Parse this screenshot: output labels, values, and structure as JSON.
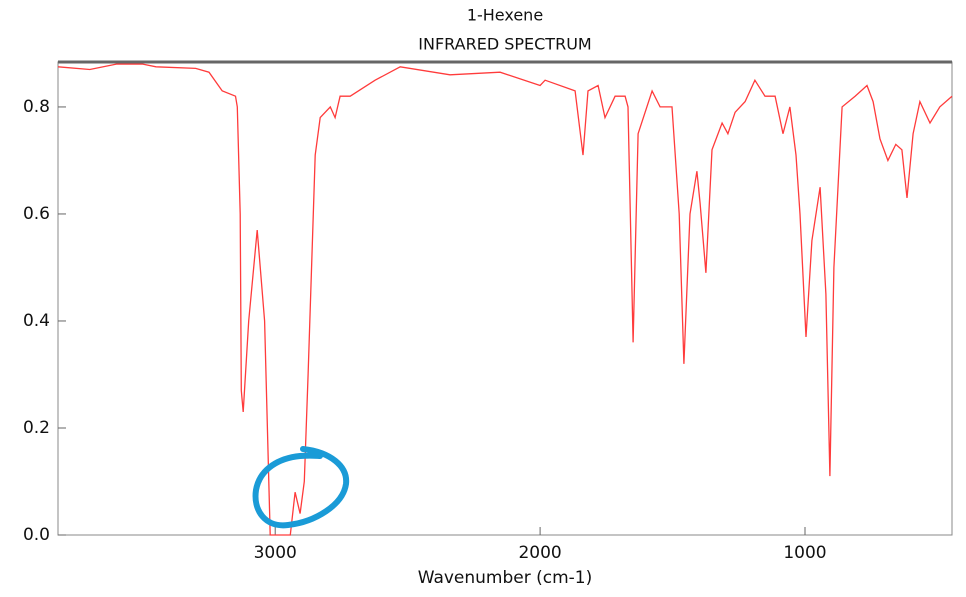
{
  "chart_data": {
    "type": "line",
    "title": "1-Hexene",
    "subtitle": "INFRARED SPECTRUM",
    "x_label": "Wavenumber (cm-1)",
    "color": "#ff3b3b",
    "x": [
      3820,
      3700,
      3600,
      3500,
      3450,
      3300,
      3250,
      3200,
      3150,
      3143,
      3132,
      3128,
      3121,
      3100,
      3068,
      3040,
      3019,
      2990,
      2943,
      2925,
      2906,
      2890,
      2876,
      2849,
      2830,
      2792,
      2774,
      2755,
      2717,
      2623,
      2528,
      2340,
      2151,
      2000,
      1981,
      1868,
      1838,
      1819,
      1781,
      1755,
      1717,
      1679,
      1668,
      1649,
      1630,
      1577,
      1547,
      1502,
      1475,
      1457,
      1434,
      1408,
      1396,
      1374,
      1351,
      1313,
      1291,
      1264,
      1226,
      1189,
      1151,
      1113,
      1083,
      1057,
      1034,
      1019,
      996,
      974,
      943,
      921,
      906,
      891,
      860,
      811,
      766,
      743,
      717,
      687,
      657,
      634,
      615,
      592,
      566,
      528,
      491,
      445
    ],
    "values": [
      0.875,
      0.87,
      0.88,
      0.88,
      0.875,
      0.872,
      0.865,
      0.83,
      0.82,
      0.8,
      0.6,
      0.27,
      0.23,
      0.4,
      0.57,
      0.4,
      0.0,
      0.0,
      0.0,
      0.08,
      0.04,
      0.1,
      0.3,
      0.71,
      0.78,
      0.8,
      0.78,
      0.82,
      0.82,
      0.85,
      0.875,
      0.86,
      0.865,
      0.84,
      0.85,
      0.83,
      0.71,
      0.83,
      0.84,
      0.78,
      0.82,
      0.82,
      0.8,
      0.36,
      0.75,
      0.83,
      0.8,
      0.8,
      0.6,
      0.32,
      0.6,
      0.68,
      0.62,
      0.49,
      0.72,
      0.77,
      0.75,
      0.79,
      0.81,
      0.85,
      0.82,
      0.82,
      0.75,
      0.8,
      0.71,
      0.6,
      0.37,
      0.55,
      0.65,
      0.45,
      0.11,
      0.5,
      0.8,
      0.82,
      0.84,
      0.81,
      0.74,
      0.7,
      0.73,
      0.72,
      0.63,
      0.75,
      0.81,
      0.77,
      0.8,
      0.82
    ],
    "xlim": [
      3820,
      445
    ],
    "xticks": [
      3000,
      2000,
      1000
    ],
    "ylim": [
      0,
      0.884
    ],
    "yticks": [
      {
        "value": 0,
        "label": "0.0"
      },
      0.2,
      0.4,
      0.6,
      0.8
    ]
  }
}
